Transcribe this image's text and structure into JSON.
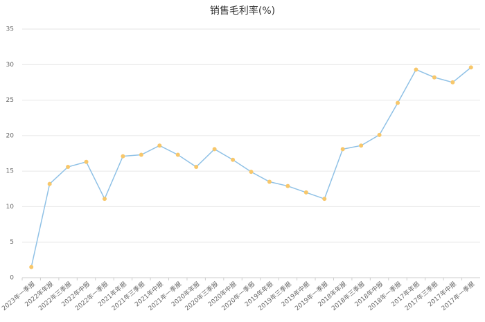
{
  "chart_data": {
    "type": "line",
    "title": "销售毛利率(%)",
    "categories": [
      "2023年一季报",
      "2022年年报",
      "2022年三季报",
      "2022年中报",
      "2022年一季报",
      "2021年年报",
      "2021年三季报",
      "2021年中报",
      "2021年一季报",
      "2020年年报",
      "2020年三季报",
      "2020年中报",
      "2020年一季报",
      "2019年年报",
      "2019年三季报",
      "2019年中报",
      "2019年一季报",
      "2018年年报",
      "2018年三季报",
      "2018年中报",
      "2018年一季报",
      "2017年年报",
      "2017年三季报",
      "2017年中报",
      "2017年一季报"
    ],
    "values": [
      1.5,
      13.2,
      15.6,
      16.3,
      11.1,
      17.1,
      17.3,
      18.6,
      17.3,
      15.6,
      18.1,
      16.6,
      14.9,
      13.5,
      12.9,
      12.0,
      11.1,
      18.1,
      18.6,
      20.1,
      24.6,
      29.3,
      28.2,
      27.5,
      29.6
    ],
    "color": "#8fc1e6",
    "marker_color": "#f7c76b",
    "ylim": [
      0,
      35
    ],
    "yticks": [
      0,
      5,
      10,
      15,
      20,
      25,
      30,
      35
    ],
    "grid": true
  }
}
